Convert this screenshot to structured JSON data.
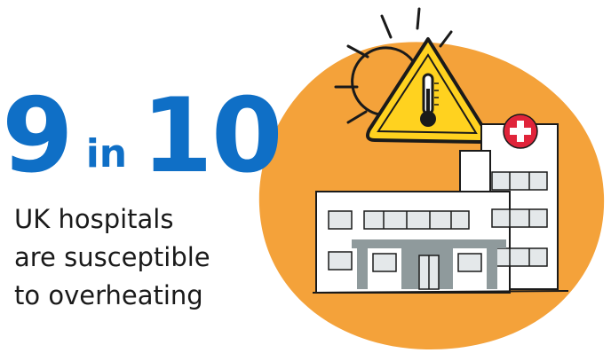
{
  "stat": {
    "numerator": "9",
    "connector": "in",
    "denominator": "10"
  },
  "caption": {
    "line1": "UK hospitals",
    "line2": "are susceptible",
    "line3": "to overheating"
  },
  "colors": {
    "accent_blue": "#0F6FC6",
    "orange_circle": "#F4A23A",
    "warning_yellow": "#FFD21F",
    "red_cross": "#E0243A"
  },
  "icons": [
    "sun-icon",
    "warning-thermometer-icon",
    "hospital-icon",
    "medical-cross-icon"
  ]
}
